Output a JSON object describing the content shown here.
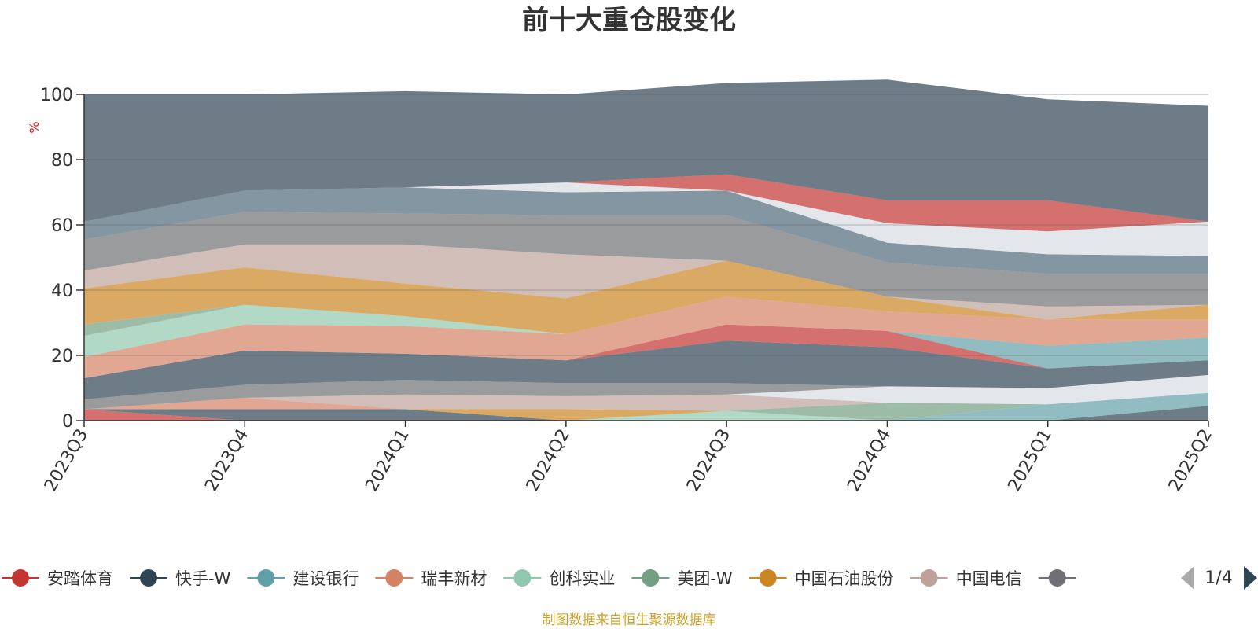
{
  "chart_data": {
    "type": "area",
    "stacked": true,
    "title": "前十大重仓股变化",
    "ylabel": "%",
    "ylim": [
      0,
      100
    ],
    "yticks": [
      0,
      20,
      40,
      60,
      80,
      100
    ],
    "grid": true,
    "legend_position": "bottom",
    "legend_page": "1/4",
    "source_note": "制图数据来自恒生聚源数据库",
    "categories": [
      "2023Q3",
      "2023Q4",
      "2024Q1",
      "2024Q2",
      "2024Q3",
      "2024Q4",
      "2025Q1",
      "2025Q2"
    ],
    "legend": [
      {
        "name": "安踏体育",
        "color": "#c23531"
      },
      {
        "name": "快手-W",
        "color": "#2f4554"
      },
      {
        "name": "建设银行",
        "color": "#61a0a8"
      },
      {
        "name": "瑞丰新材",
        "color": "#d48265"
      },
      {
        "name": "创科实业",
        "color": "#91c7ae"
      },
      {
        "name": "美团-W",
        "color": "#749f83"
      },
      {
        "name": "中国石油股份",
        "color": "#ca8622"
      },
      {
        "name": "中国电信",
        "color": "#bda29a"
      },
      {
        "name": "",
        "color": "#6e7074"
      }
    ],
    "bands": [
      {
        "color": "#c23531",
        "values": [
          3.5,
          0,
          0,
          0,
          0,
          0,
          0,
          0
        ]
      },
      {
        "color": "#2f4554",
        "values": [
          0,
          3.5,
          3.5,
          0,
          0,
          0,
          0,
          4.5
        ]
      },
      {
        "color": "#61a0a8",
        "values": [
          0,
          0,
          0,
          0,
          0,
          0,
          5,
          4
        ]
      },
      {
        "color": "#91c7ae",
        "values": [
          0,
          0,
          0,
          0,
          3,
          0,
          0,
          0
        ]
      },
      {
        "color": "#749f83",
        "values": [
          0,
          0,
          0,
          0,
          0,
          5.5,
          0,
          0
        ]
      },
      {
        "color": "#ca8622",
        "values": [
          0,
          0,
          0,
          3.5,
          0,
          0,
          0,
          0
        ]
      },
      {
        "color": "#d48265",
        "values": [
          0,
          3.5,
          0,
          0,
          0,
          0,
          0,
          0
        ]
      },
      {
        "color": "#bda29a",
        "values": [
          0,
          0,
          4.5,
          4,
          5,
          0,
          0,
          0
        ]
      },
      {
        "color": "#d7dde4",
        "values": [
          0,
          0,
          0,
          0,
          0,
          5,
          5,
          5.5
        ]
      },
      {
        "color": "#6e7074",
        "values": [
          3,
          4,
          4.5,
          4,
          3.5,
          0,
          0,
          0
        ]
      },
      {
        "color": "#2f4554",
        "values": [
          6.5,
          10.5,
          8,
          7,
          13,
          12,
          6,
          4.5
        ]
      },
      {
        "color": "#c23531",
        "values": [
          0,
          0,
          0,
          0,
          5,
          5,
          0,
          0
        ]
      },
      {
        "color": "#61a0a8",
        "values": [
          0,
          0,
          0,
          0,
          0,
          0,
          7,
          7
        ]
      },
      {
        "color": "#d48265",
        "values": [
          6.5,
          8,
          8.5,
          8,
          8.5,
          6,
          8,
          5.5
        ]
      },
      {
        "color": "#91c7ae",
        "values": [
          6.5,
          6,
          3,
          0,
          0,
          0,
          0,
          0
        ]
      },
      {
        "color": "#749f83",
        "values": [
          3.5,
          0,
          0,
          0,
          0,
          0,
          0,
          0
        ]
      },
      {
        "color": "#ca8622",
        "values": [
          11,
          11.5,
          10,
          11,
          11,
          4.5,
          0,
          4.5
        ]
      },
      {
        "color": "#bda29a",
        "values": [
          5.5,
          7,
          12,
          13.5,
          0,
          0,
          4,
          0
        ]
      },
      {
        "color": "#6e7074",
        "values": [
          9.5,
          10,
          9.5,
          12,
          14,
          10.5,
          10,
          9.5
        ]
      },
      {
        "color": "#4e6a7a",
        "values": [
          5.5,
          6.5,
          8,
          7,
          7.5,
          6,
          6,
          5.5
        ]
      },
      {
        "color": "#d7dde4",
        "values": [
          0,
          0,
          0,
          3,
          0,
          6,
          7,
          10.5
        ]
      },
      {
        "color": "#c23531",
        "values": [
          0,
          0,
          0,
          0,
          5,
          7,
          9.5,
          0
        ]
      },
      {
        "color": "#2f4554",
        "values": [
          39,
          29.5,
          29.5,
          27,
          28,
          37,
          31,
          35.5
        ]
      }
    ]
  }
}
